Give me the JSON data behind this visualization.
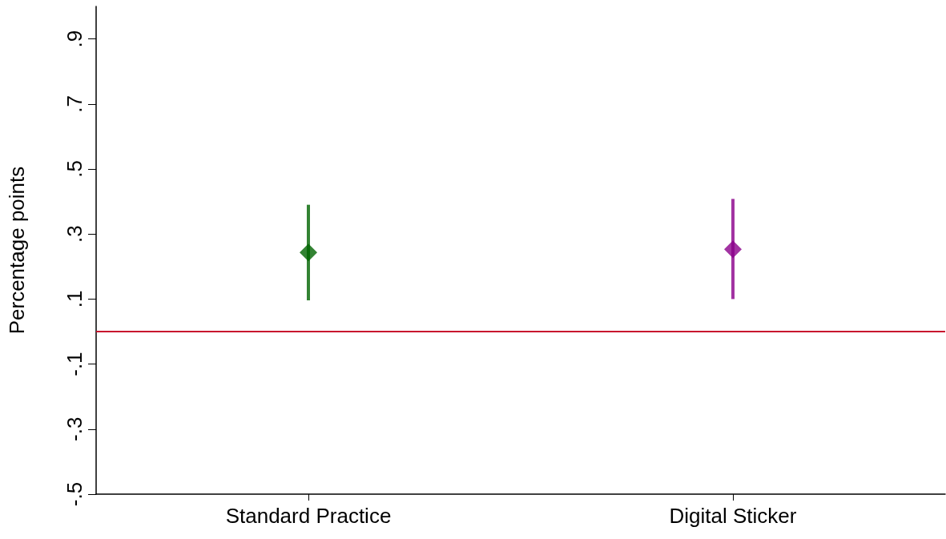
{
  "chart_data": {
    "type": "scatter",
    "ylabel": "Percentage points",
    "categories": [
      "Standard Practice",
      "Digital Sticker"
    ],
    "values": [
      0.243,
      0.253
    ],
    "colors": [
      "#006400",
      "#8b008b"
    ],
    "errors": [
      [
        0.096,
        0.39
      ],
      [
        0.1,
        0.408
      ]
    ],
    "marker": "diamond",
    "ylim": [
      -0.5,
      1.0
    ],
    "yticks": [
      {
        "value": -0.5,
        "label": "-.5"
      },
      {
        "value": -0.3,
        "label": "-.3"
      },
      {
        "value": -0.1,
        "label": "-.1"
      },
      {
        "value": 0.1,
        "label": ".1"
      },
      {
        "value": 0.3,
        "label": ".3"
      },
      {
        "value": 0.5,
        "label": ".5"
      },
      {
        "value": 0.7,
        "label": ".7"
      },
      {
        "value": 0.9,
        "label": ".9"
      }
    ],
    "ref_lines": [
      {
        "axis": "y",
        "value": 0,
        "color": "#c8102e"
      }
    ],
    "grid": false
  }
}
